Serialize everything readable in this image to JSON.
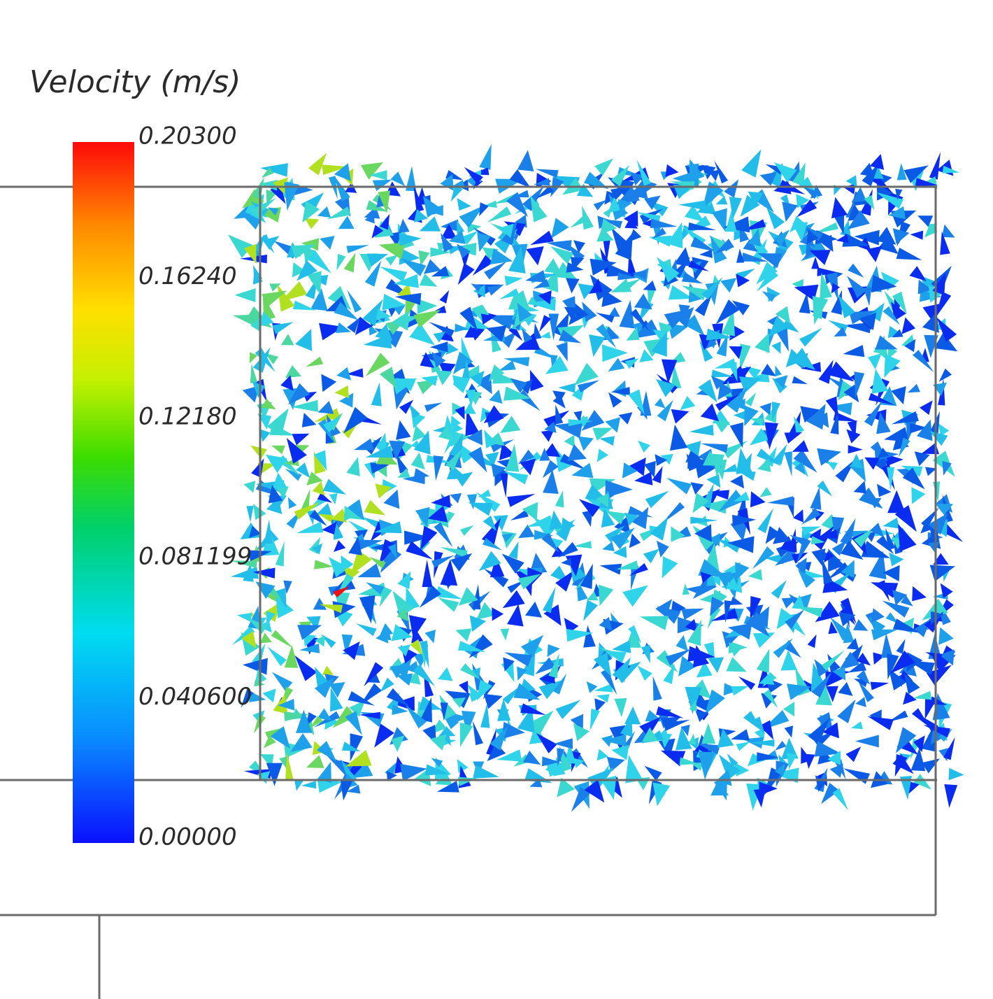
{
  "legend": {
    "title": "Velocity (m/s)",
    "labels": [
      "0.20300",
      "0.16240",
      "0.12180",
      "0.081199",
      "0.040600",
      "0.00000"
    ]
  }
}
